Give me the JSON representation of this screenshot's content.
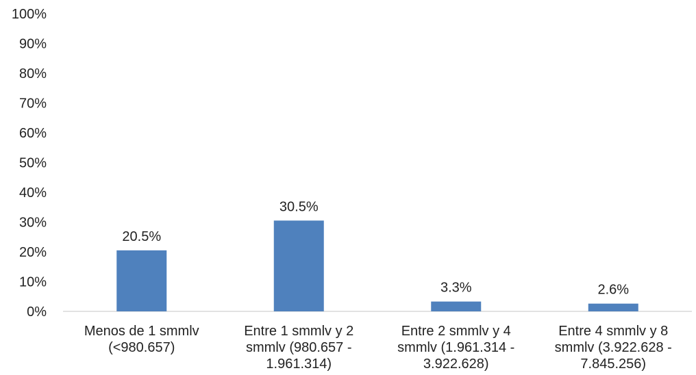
{
  "chart_data": {
    "type": "bar",
    "title": "",
    "xlabel": "",
    "ylabel": "",
    "ylim": [
      0,
      100
    ],
    "yticks": [
      "0%",
      "10%",
      "20%",
      "30%",
      "40%",
      "50%",
      "60%",
      "70%",
      "80%",
      "90%",
      "100%"
    ],
    "grid": false,
    "legend": "none",
    "bar_color": "#4f81bd",
    "categories": [
      [
        "Menos de 1 smmlv",
        "(<980.657)"
      ],
      [
        "Entre 1 smmlv y 2",
        "smmlv (980.657 -",
        "1.961.314)"
      ],
      [
        "Entre 2 smmlv y 4",
        "smmlv (1.961.314 -",
        "3.922.628)"
      ],
      [
        "Entre 4 smmlv y 8",
        "smmlv (3.922.628 -",
        "7.845.256)"
      ]
    ],
    "values": [
      20.5,
      30.5,
      3.3,
      2.6
    ],
    "data_labels": [
      "20.5%",
      "30.5%",
      "3.3%",
      "2.6%"
    ]
  }
}
